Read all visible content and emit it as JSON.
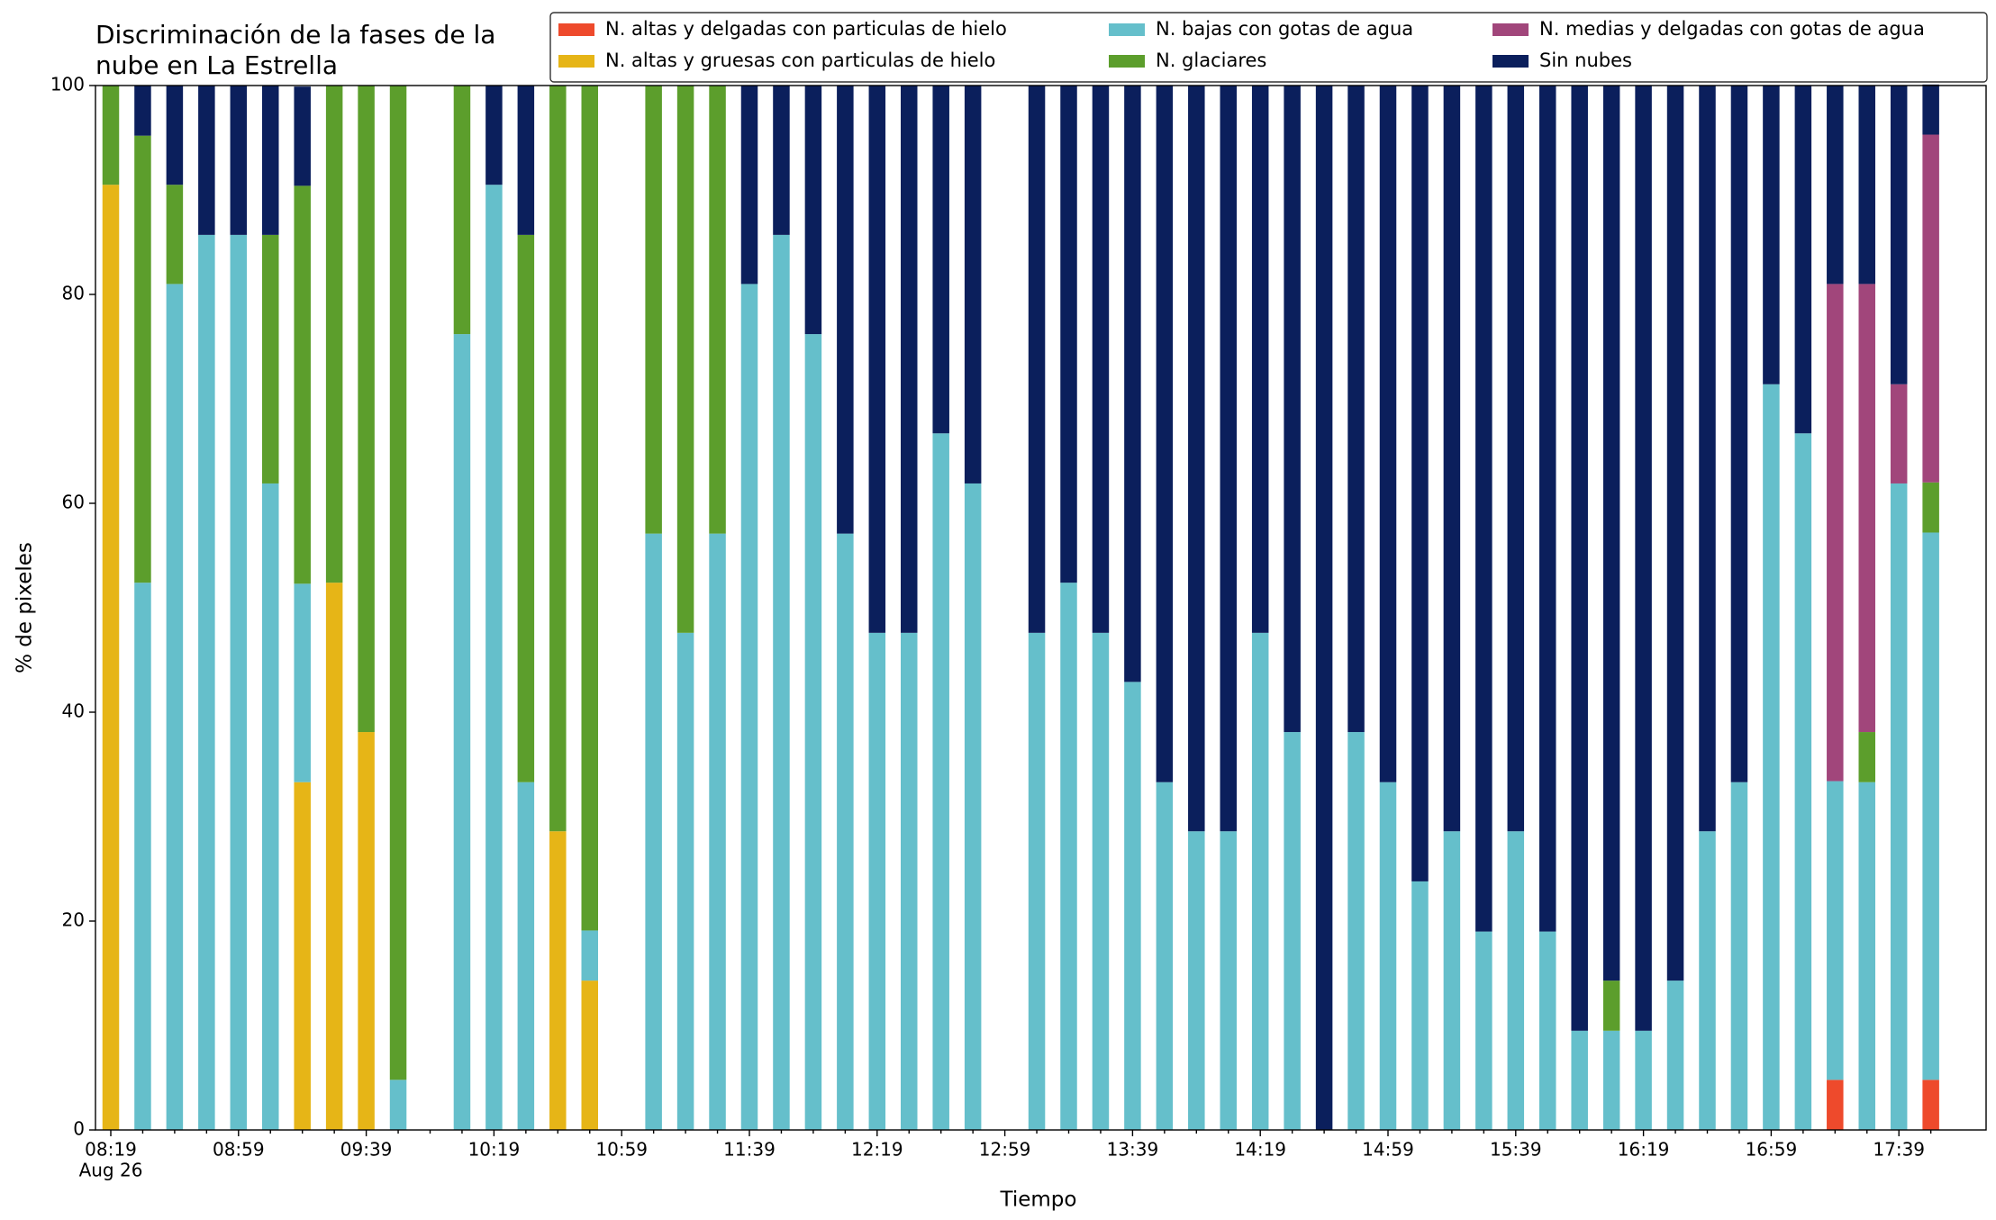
{
  "chart_data": {
    "type": "stacked_bar",
    "title": [
      "Discriminación de la fases de la",
      "nube en La Estrella"
    ],
    "xlabel": "Tiempo",
    "ylabel": "% de pixeles",
    "x_date_label": "Aug 26",
    "categories": [
      "08:19",
      null,
      null,
      null,
      "08:59",
      null,
      null,
      null,
      "09:39",
      null,
      null,
      null,
      "10:19",
      null,
      null,
      null,
      "10:59",
      null,
      null,
      null,
      "11:39",
      null,
      null,
      null,
      "12:19",
      null,
      null,
      null,
      "12:59",
      null,
      null,
      null,
      "13:39",
      null,
      null,
      null,
      "14:19",
      null,
      null,
      null,
      "14:59",
      null,
      null,
      null,
      "15:39",
      null,
      null,
      null,
      "16:19",
      null,
      null,
      null,
      "16:59",
      null,
      null,
      null,
      "17:39",
      null
    ],
    "ylim": [
      0,
      100
    ],
    "yticks": [
      0,
      20,
      40,
      60,
      80,
      100
    ],
    "legend": "top-right",
    "series": [
      {
        "name": "N. altas y delgadas con particulas de hielo",
        "color": "#ee4a2c",
        "values": [
          0,
          0,
          0,
          0,
          0,
          0,
          0,
          0,
          0,
          0,
          null,
          0,
          0,
          0,
          0,
          0,
          null,
          0,
          0,
          0,
          0,
          0,
          0,
          0,
          0,
          0,
          0,
          0,
          null,
          0,
          0,
          0,
          0,
          0,
          0,
          0,
          0,
          0,
          0,
          0,
          0,
          0,
          0,
          0,
          0,
          0,
          0,
          0,
          0,
          0,
          0,
          0,
          0,
          0,
          4.8,
          0,
          0,
          4.8
        ]
      },
      {
        "name": "N. altas y gruesas con particulas de hielo",
        "color": "#e6b517",
        "values": [
          90.5,
          0,
          0,
          0,
          0,
          0,
          33.3,
          52.4,
          38.1,
          0,
          null,
          0,
          0,
          0,
          28.6,
          14.3,
          null,
          0,
          0,
          0,
          0,
          0,
          0,
          0,
          0,
          0,
          0,
          0,
          null,
          0,
          0,
          0,
          0,
          0,
          0,
          0,
          0,
          0,
          0,
          0,
          0,
          0,
          0,
          0,
          0,
          0,
          0,
          0,
          0,
          0,
          0,
          0,
          0,
          0,
          0,
          0,
          0,
          0
        ]
      },
      {
        "name": "N. bajas con gotas de agua",
        "color": "#65bfcb",
        "values": [
          0,
          52.4,
          81,
          85.7,
          85.7,
          61.9,
          19.0,
          0,
          0,
          4.8,
          null,
          76.2,
          90.5,
          33.3,
          0,
          4.8,
          null,
          57.1,
          47.6,
          57.1,
          81,
          85.7,
          76.2,
          57.1,
          47.6,
          47.6,
          66.7,
          61.9,
          null,
          47.6,
          52.4,
          47.6,
          42.9,
          33.3,
          28.6,
          28.6,
          47.6,
          38.1,
          0,
          38.1,
          33.3,
          23.8,
          28.6,
          19.0,
          28.6,
          19.0,
          9.5,
          9.5,
          9.5,
          14.3,
          28.6,
          33.3,
          71.4,
          66.7,
          28.6,
          33.3,
          61.9,
          52.4
        ]
      },
      {
        "name": "N. glaciares",
        "color": "#5c9e2c",
        "values": [
          9.5,
          42.8,
          9.5,
          0,
          0,
          23.8,
          38.1,
          47.6,
          61.9,
          95.2,
          null,
          23.8,
          0,
          52.4,
          71.4,
          80.9,
          null,
          42.9,
          52.4,
          42.9,
          0,
          0,
          0,
          0,
          0,
          0,
          0,
          0,
          null,
          0,
          0,
          0,
          0,
          0,
          0,
          0,
          0,
          0,
          0,
          0,
          0,
          0,
          0,
          0,
          0,
          0,
          0,
          4.8,
          0,
          0,
          0,
          0,
          0,
          0,
          0,
          4.8,
          0,
          4.8
        ]
      },
      {
        "name": "N. medias y delgadas con gotas de agua",
        "color": "#a1467b",
        "values": [
          0,
          0,
          0,
          0,
          0,
          0,
          0,
          0,
          0,
          0,
          null,
          0,
          0,
          0,
          0,
          0,
          null,
          0,
          0,
          0,
          0,
          0,
          0,
          0,
          0,
          0,
          0,
          0,
          null,
          0,
          0,
          0,
          0,
          0,
          0,
          0,
          0,
          0,
          0,
          0,
          0,
          0,
          0,
          0,
          0,
          0,
          0,
          0,
          0,
          0,
          0,
          0,
          0,
          0,
          47.6,
          42.9,
          9.5,
          33.3
        ]
      },
      {
        "name": "Sin nubes",
        "color": "#0b1f5c",
        "values": [
          0,
          4.8,
          9.5,
          14.3,
          14.3,
          14.3,
          9.5,
          0,
          0,
          0,
          null,
          0,
          9.5,
          14.3,
          0,
          0,
          null,
          0,
          0,
          0,
          19,
          14.3,
          23.8,
          42.9,
          52.4,
          52.4,
          33.3,
          38.1,
          null,
          52.4,
          47.6,
          52.4,
          57.1,
          66.7,
          71.4,
          71.4,
          52.4,
          61.9,
          100,
          61.9,
          66.7,
          76.2,
          71.4,
          81.0,
          71.4,
          81.0,
          90.5,
          85.7,
          90.5,
          85.7,
          71.4,
          66.7,
          28.6,
          33.3,
          19.0,
          19.0,
          28.6,
          4.8
        ]
      }
    ]
  }
}
